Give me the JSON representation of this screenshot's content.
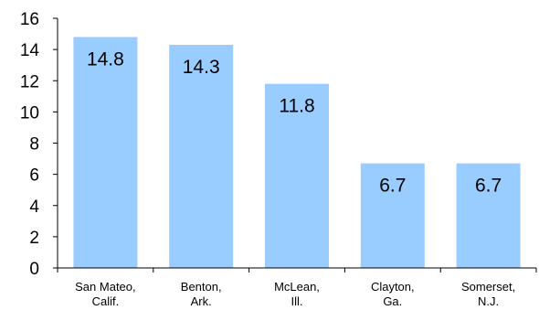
{
  "chart_data": {
    "type": "bar",
    "categories": [
      [
        "San Mateo,",
        "Calif."
      ],
      [
        "Benton,",
        "Ark."
      ],
      [
        "McLean,",
        "Ill."
      ],
      [
        "Clayton,",
        "Ga."
      ],
      [
        "Somerset,",
        "N.J."
      ]
    ],
    "values": [
      14.8,
      14.3,
      11.8,
      6.7,
      6.7
    ],
    "data_labels": [
      "14.8",
      "14.3",
      "11.8",
      "6.7",
      "6.7"
    ],
    "ylim": [
      0,
      16
    ],
    "y_ticks": [
      "0",
      "2",
      "4",
      "6",
      "8",
      "10",
      "12",
      "14",
      "16"
    ],
    "grid": false,
    "legend": "none",
    "bar_color": "#99ccff",
    "axis_color": "#000000"
  }
}
